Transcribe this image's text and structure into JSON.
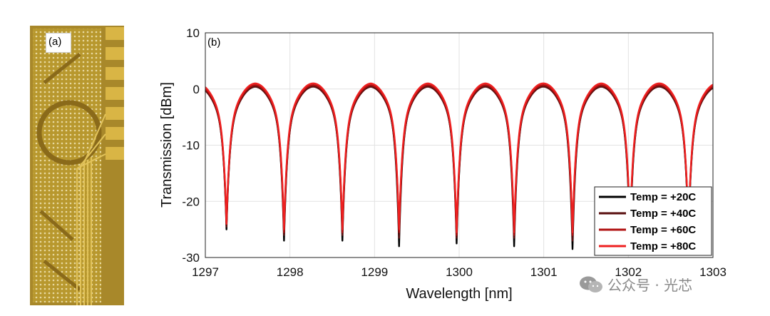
{
  "panel_a": {
    "tag": "(a)"
  },
  "panel_b": {
    "tag": "(b)"
  },
  "watermark": {
    "text": "公众号 · 光芯",
    "icon": "wechat-icon"
  },
  "chart_data": {
    "type": "line",
    "title": "",
    "xlabel": "Wavelength [nm]",
    "ylabel": "Transmission [dBm]",
    "xlim": [
      1297,
      1303
    ],
    "ylim": [
      -30,
      10
    ],
    "xticks": [
      1297,
      1298,
      1299,
      1300,
      1301,
      1302,
      1303
    ],
    "yticks": [
      -30,
      -20,
      -10,
      0,
      10
    ],
    "grid": true,
    "legend_position": "lower-right",
    "free_spectral_range_nm": 0.69,
    "series": [
      {
        "name": "Temp = +20C",
        "color": "#000000",
        "peak_dbm": 0.5,
        "resonance_nm": [
          1297.25,
          1297.93,
          1298.62,
          1299.29,
          1299.97,
          1300.65,
          1301.34,
          1302.02,
          1302.71
        ],
        "min_dbm": [
          -25,
          -27,
          -27,
          -28,
          -27.5,
          -28,
          -28.5,
          -27,
          -26
        ]
      },
      {
        "name": "Temp = +40C",
        "color": "#5a0f0f",
        "peak_dbm": 0.4,
        "resonance_nm": [
          1297.25,
          1297.93,
          1298.62,
          1299.29,
          1299.97,
          1300.65,
          1301.34,
          1302.02,
          1302.71
        ],
        "min_dbm": [
          -24.5,
          -26,
          -26,
          -26.5,
          -26.5,
          -26.5,
          -27,
          -26,
          -25.5
        ]
      },
      {
        "name": "Temp = +60C",
        "color": "#b01010",
        "peak_dbm": 0.7,
        "resonance_nm": [
          1297.25,
          1297.93,
          1298.62,
          1299.29,
          1299.97,
          1300.65,
          1301.34,
          1302.02,
          1302.71
        ],
        "min_dbm": [
          -24,
          -25.5,
          -25.5,
          -25.5,
          -26,
          -26,
          -26,
          -25.5,
          -25
        ]
      },
      {
        "name": "Temp = +80C",
        "color": "#ee2020",
        "peak_dbm": 1.0,
        "resonance_nm": [
          1297.25,
          1297.93,
          1298.62,
          1299.29,
          1299.97,
          1300.65,
          1301.34,
          1302.02,
          1302.71
        ],
        "min_dbm": [
          -24,
          -25,
          -25,
          -25,
          -25.5,
          -25.5,
          -25.5,
          -25,
          -25
        ]
      }
    ]
  }
}
